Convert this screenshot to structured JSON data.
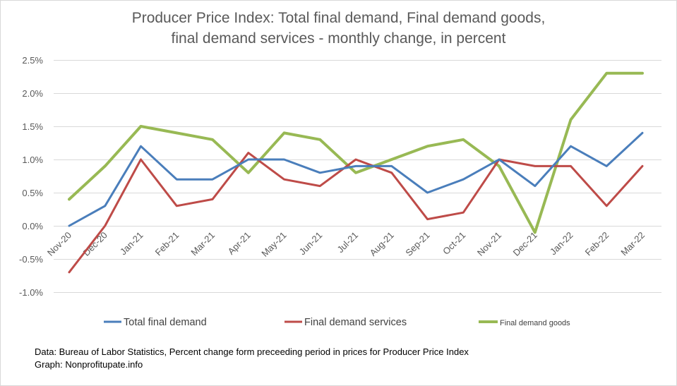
{
  "chart_data": {
    "type": "line",
    "title_line1": "Producer Price Index: Total final demand, Final demand goods,",
    "title_line2": "final demand services -  monthly change, in percent",
    "categories": [
      "Nov-20",
      "Dec-20",
      "Jan-21",
      "Feb-21",
      "Mar-21",
      "Apr-21",
      "May-21",
      "Jun-21",
      "Jul-21",
      "Aug-21",
      "Sep-21",
      "Oct-21",
      "Nov-21",
      "Dec-21",
      "Jan-22",
      "Feb-22",
      "Mar-22"
    ],
    "y_ticks": [
      "-1.0%",
      "-0.5%",
      "0.0%",
      "0.5%",
      "1.0%",
      "1.5%",
      "2.0%",
      "2.5%"
    ],
    "ylim": [
      -1.0,
      2.5
    ],
    "grid": true,
    "legend_position": "bottom",
    "series": [
      {
        "name": "Total final demand",
        "color": "#4a7ebb",
        "values": [
          0.0,
          0.3,
          1.2,
          0.7,
          0.7,
          1.0,
          1.0,
          0.8,
          0.9,
          0.9,
          0.5,
          0.7,
          1.0,
          0.6,
          1.2,
          0.9,
          1.4
        ]
      },
      {
        "name": "Final demand services",
        "color": "#be4b48",
        "values": [
          -0.7,
          0.0,
          1.0,
          0.3,
          0.4,
          1.1,
          0.7,
          0.6,
          1.0,
          0.8,
          0.1,
          0.2,
          1.0,
          0.9,
          0.9,
          0.3,
          0.9
        ]
      },
      {
        "name": "Final demand goods",
        "color": "#98b954",
        "values": [
          0.4,
          0.9,
          1.5,
          1.4,
          1.3,
          0.8,
          1.4,
          1.3,
          0.8,
          1.0,
          1.2,
          1.3,
          0.9,
          -0.1,
          1.6,
          2.3,
          2.3
        ]
      }
    ]
  },
  "footer": {
    "line1": "Data: Bureau of Labor Statistics, Percent change form preceeding period in prices for Producer Price Index",
    "line2": "Graph:  Nonprofitupate.info"
  }
}
